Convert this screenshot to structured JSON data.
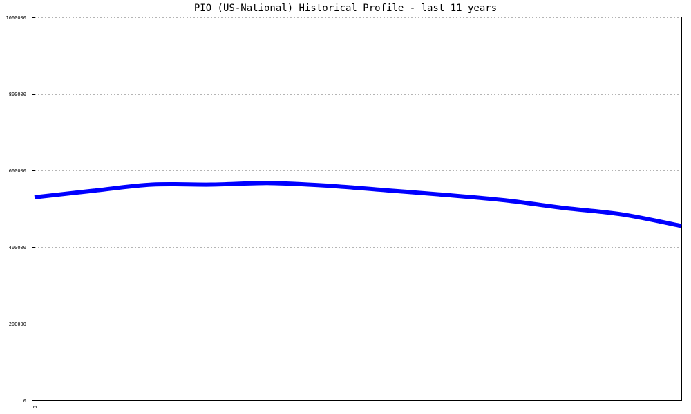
{
  "chart_data": {
    "type": "line",
    "title": "PIO (US-National) Historical Profile - last 11 years",
    "xlabel": "",
    "ylabel": "",
    "x_tick_labels": [
      "0"
    ],
    "y_tick_labels": [
      "0",
      "200000",
      "400000",
      "600000",
      "800000",
      "1000000"
    ],
    "ylim": [
      0,
      1000000
    ],
    "xlim": [
      0,
      11
    ],
    "grid": "horizontal dotted",
    "legend": "none",
    "series": [
      {
        "color": "#0000ff",
        "x": [
          0,
          1,
          2,
          3,
          4,
          5,
          6,
          7,
          8,
          9,
          10,
          11
        ],
        "values": [
          530000,
          547000,
          563000,
          563000,
          567000,
          560000,
          548000,
          536000,
          522000,
          502000,
          485000,
          455000
        ]
      }
    ]
  }
}
